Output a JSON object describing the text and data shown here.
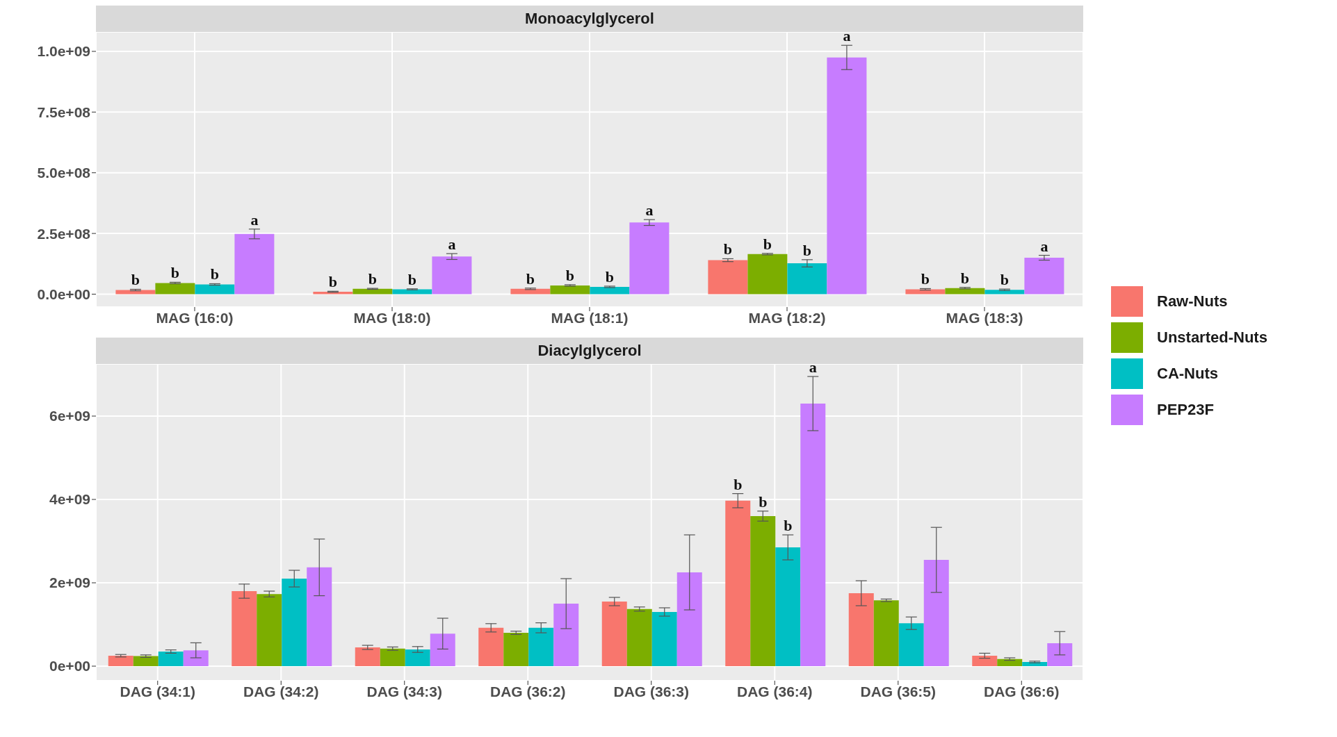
{
  "chart_data": [
    {
      "type": "bar",
      "title": "Monoacylglycerol",
      "categories": [
        "MAG (16:0)",
        "MAG (18:0)",
        "MAG (18:1)",
        "MAG (18:2)",
        "MAG (18:3)"
      ],
      "ylim": [
        -53000000,
        1080000000
      ],
      "yticks": [
        {
          "value": 0,
          "label": "0.0e+00"
        },
        {
          "value": 250000000,
          "label": "2.5e+08"
        },
        {
          "value": 500000000,
          "label": "5.0e+08"
        },
        {
          "value": 750000000,
          "label": "7.5e+08"
        },
        {
          "value": 1000000000,
          "label": "1.0e+09"
        }
      ],
      "grid": true,
      "legend": "right",
      "series": [
        {
          "name": "Raw-Nuts",
          "color": "#f8766d",
          "values": [
            17000000,
            10000000,
            22000000,
            140000000,
            20000000
          ],
          "errors": [
            3000000,
            2000000,
            3000000,
            6000000,
            3000000
          ],
          "value_labels": [
            "b",
            "b",
            "b",
            "b",
            "b"
          ]
        },
        {
          "name": "Unstarted-Nuts",
          "color": "#7cae00",
          "values": [
            46000000,
            22000000,
            36000000,
            165000000,
            25000000
          ],
          "errors": [
            3000000,
            2000000,
            3000000,
            3000000,
            3000000
          ],
          "value_labels": [
            "b",
            "b",
            "b",
            "b",
            "b"
          ]
        },
        {
          "name": "CA-Nuts",
          "color": "#00bfc4",
          "values": [
            40000000,
            20000000,
            30000000,
            127000000,
            18000000
          ],
          "errors": [
            3000000,
            2000000,
            3000000,
            15000000,
            3000000
          ],
          "value_labels": [
            "b",
            "b",
            "b",
            "b",
            "b"
          ]
        },
        {
          "name": "PEP23F",
          "color": "#c77cff",
          "values": [
            248000000,
            155000000,
            295000000,
            975000000,
            150000000
          ],
          "errors": [
            20000000,
            12000000,
            12000000,
            50000000,
            10000000
          ],
          "value_labels": [
            "a",
            "a",
            "a",
            "a",
            "a"
          ]
        }
      ]
    },
    {
      "type": "bar",
      "title": "Diacylglycerol",
      "categories": [
        "DAG (34:1)",
        "DAG (34:2)",
        "DAG (34:3)",
        "DAG (36:2)",
        "DAG (36:3)",
        "DAG (36:4)",
        "DAG (36:5)",
        "DAG (36:6)"
      ],
      "ylim": [
        -350000000,
        7250000000
      ],
      "yticks": [
        {
          "value": 0,
          "label": "0e+00"
        },
        {
          "value": 2000000000,
          "label": "2e+09"
        },
        {
          "value": 4000000000,
          "label": "4e+09"
        },
        {
          "value": 6000000000,
          "label": "6e+09"
        }
      ],
      "grid": true,
      "series": [
        {
          "name": "Raw-Nuts",
          "color": "#f8766d",
          "values": [
            250000000,
            1800000000,
            450000000,
            920000000,
            1550000000,
            3970000000,
            1750000000,
            250000000
          ],
          "errors": [
            30000000,
            170000000,
            50000000,
            100000000,
            100000000,
            170000000,
            300000000,
            60000000
          ],
          "value_labels": [
            null,
            null,
            null,
            null,
            null,
            "b",
            null,
            null
          ]
        },
        {
          "name": "Unstarted-Nuts",
          "color": "#7cae00",
          "values": [
            240000000,
            1730000000,
            420000000,
            800000000,
            1370000000,
            3600000000,
            1580000000,
            170000000
          ],
          "errors": [
            30000000,
            70000000,
            40000000,
            40000000,
            50000000,
            120000000,
            30000000,
            30000000
          ],
          "value_labels": [
            null,
            null,
            null,
            null,
            null,
            "b",
            null,
            null
          ]
        },
        {
          "name": "CA-Nuts",
          "color": "#00bfc4",
          "values": [
            350000000,
            2100000000,
            400000000,
            920000000,
            1300000000,
            2850000000,
            1030000000,
            100000000
          ],
          "errors": [
            40000000,
            200000000,
            70000000,
            120000000,
            100000000,
            300000000,
            150000000,
            20000000
          ],
          "value_labels": [
            null,
            null,
            null,
            null,
            null,
            "b",
            null,
            null
          ]
        },
        {
          "name": "PEP23F",
          "color": "#c77cff",
          "values": [
            380000000,
            2370000000,
            780000000,
            1500000000,
            2250000000,
            6300000000,
            2550000000,
            550000000
          ],
          "errors": [
            180000000,
            680000000,
            370000000,
            600000000,
            900000000,
            650000000,
            780000000,
            280000000
          ],
          "value_labels": [
            null,
            null,
            null,
            null,
            null,
            "a",
            null,
            null
          ]
        }
      ]
    }
  ]
}
